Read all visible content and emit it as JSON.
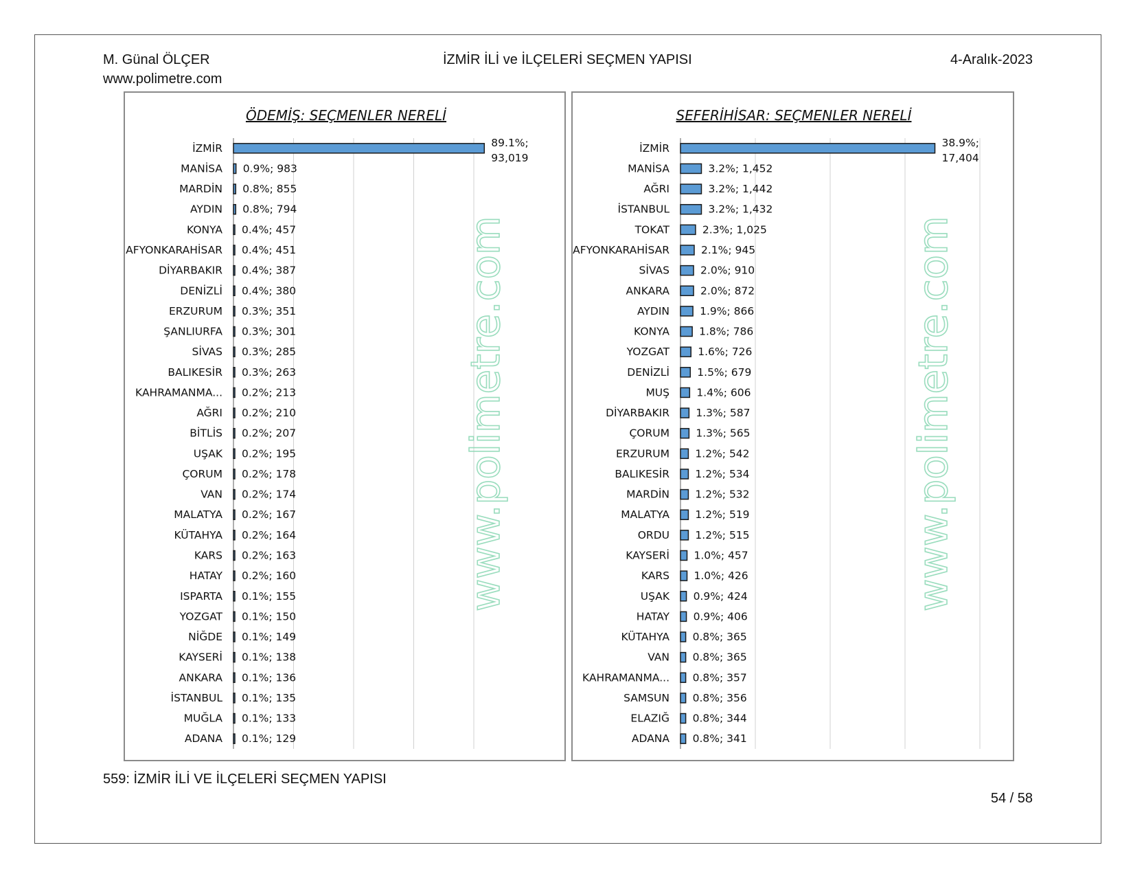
{
  "header": {
    "author": "M. Günal ÖLÇER",
    "website": "www.polimetre.com",
    "title": "İZMİR İLİ ve İLÇELERİ SEÇMEN YAPISI",
    "date": "4-Aralık-2023"
  },
  "footer": {
    "caption": "559: İZMİR İLİ VE İLÇELERİ SEÇMEN YAPISI",
    "page_number": "54 / 58"
  },
  "colors": {
    "bar_fill": "#5b9bd5",
    "bar_stroke": "#1a1a1a",
    "gridline": "#d0d0d0",
    "watermark": "#8fd9b6"
  },
  "chart_data": [
    {
      "type": "bar",
      "orientation": "horizontal",
      "title": "ÖDEMİŞ: SEÇMENLER NERELİ",
      "watermark": "www.polimetre.com",
      "grid": true,
      "xlim": [
        0,
        100
      ],
      "categories": [
        "İZMİR",
        "MANİSA",
        "MARDİN",
        "AYDIN",
        "KONYA",
        "AFYONKARAHİSAR",
        "DİYARBAKIR",
        "DENİZLİ",
        "ERZURUM",
        "ŞANLIURFA",
        "SİVAS",
        "BALIKESİR",
        "KAHRAMANMA...",
        "AĞRI",
        "BİTLİS",
        "UŞAK",
        "ÇORUM",
        "VAN",
        "MALATYA",
        "KÜTAHYA",
        "KARS",
        "HATAY",
        "ISPARTA",
        "YOZGAT",
        "NİĞDE",
        "KAYSERİ",
        "ANKARA",
        "İSTANBUL",
        "MUĞLA",
        "ADANA"
      ],
      "percent": [
        89.1,
        0.9,
        0.8,
        0.8,
        0.4,
        0.4,
        0.4,
        0.4,
        0.3,
        0.3,
        0.3,
        0.3,
        0.2,
        0.2,
        0.2,
        0.2,
        0.2,
        0.2,
        0.2,
        0.2,
        0.2,
        0.2,
        0.1,
        0.1,
        0.1,
        0.1,
        0.1,
        0.1,
        0.1,
        0.1
      ],
      "values": [
        93019,
        983,
        855,
        794,
        457,
        451,
        387,
        380,
        351,
        301,
        285,
        263,
        213,
        210,
        207,
        195,
        178,
        174,
        167,
        164,
        163,
        160,
        155,
        150,
        149,
        138,
        136,
        135,
        133,
        129
      ],
      "labels": [
        "89.1%;|93,019",
        "0.9%; 983",
        "0.8%; 855",
        "0.8%; 794",
        "0.4%; 457",
        "0.4%; 451",
        "0.4%; 387",
        "0.4%; 380",
        "0.3%; 351",
        "0.3%; 301",
        "0.3%; 285",
        "0.3%; 263",
        "0.2%; 213",
        "0.2%; 210",
        "0.2%; 207",
        "0.2%; 195",
        "0.2%; 178",
        "0.2%; 174",
        "0.2%; 167",
        "0.2%; 164",
        "0.2%; 163",
        "0.2%; 160",
        "0.1%; 155",
        "0.1%; 150",
        "0.1%; 149",
        "0.1%; 138",
        "0.1%; 136",
        "0.1%; 135",
        "0.1%; 133",
        "0.1%; 129"
      ]
    },
    {
      "type": "bar",
      "orientation": "horizontal",
      "title": "SEFERİHİSAR: SEÇMENLER NERELİ",
      "watermark": "www.polimetre.com",
      "grid": true,
      "xlim": [
        0,
        40
      ],
      "categories": [
        "İZMİR",
        "MANİSA",
        "AĞRI",
        "İSTANBUL",
        "TOKAT",
        "AFYONKARAHİSAR",
        "SİVAS",
        "ANKARA",
        "AYDIN",
        "KONYA",
        "YOZGAT",
        "DENİZLİ",
        "MUŞ",
        "DİYARBAKIR",
        "ÇORUM",
        "ERZURUM",
        "BALIKESİR",
        "MARDİN",
        "MALATYA",
        "ORDU",
        "KAYSERİ",
        "KARS",
        "UŞAK",
        "HATAY",
        "KÜTAHYA",
        "VAN",
        "KAHRAMANMA...",
        "SAMSUN",
        "ELAZIĞ",
        "ADANA"
      ],
      "percent": [
        38.9,
        3.2,
        3.2,
        3.2,
        2.3,
        2.1,
        2.0,
        2.0,
        1.9,
        1.8,
        1.6,
        1.5,
        1.4,
        1.3,
        1.3,
        1.2,
        1.2,
        1.2,
        1.2,
        1.2,
        1.0,
        1.0,
        0.9,
        0.9,
        0.8,
        0.8,
        0.8,
        0.8,
        0.8,
        0.8
      ],
      "values": [
        17404,
        1452,
        1442,
        1432,
        1025,
        945,
        910,
        872,
        866,
        786,
        726,
        679,
        606,
        587,
        565,
        542,
        534,
        532,
        519,
        515,
        457,
        426,
        424,
        406,
        365,
        365,
        357,
        356,
        344,
        341
      ],
      "labels": [
        "38.9%;|17,404",
        "3.2%; 1,452",
        "3.2%; 1,442",
        "3.2%; 1,432",
        "2.3%; 1,025",
        "2.1%; 945",
        "2.0%; 910",
        "2.0%; 872",
        "1.9%; 866",
        "1.8%; 786",
        "1.6%; 726",
        "1.5%; 679",
        "1.4%; 606",
        "1.3%; 587",
        "1.3%; 565",
        "1.2%; 542",
        "1.2%; 534",
        "1.2%; 532",
        "1.2%; 519",
        "1.2%; 515",
        "1.0%; 457",
        "1.0%; 426",
        "0.9%; 424",
        "0.9%; 406",
        "0.8%; 365",
        "0.8%; 365",
        "0.8%; 357",
        "0.8%; 356",
        "0.8%; 344",
        "0.8%; 341"
      ]
    }
  ]
}
